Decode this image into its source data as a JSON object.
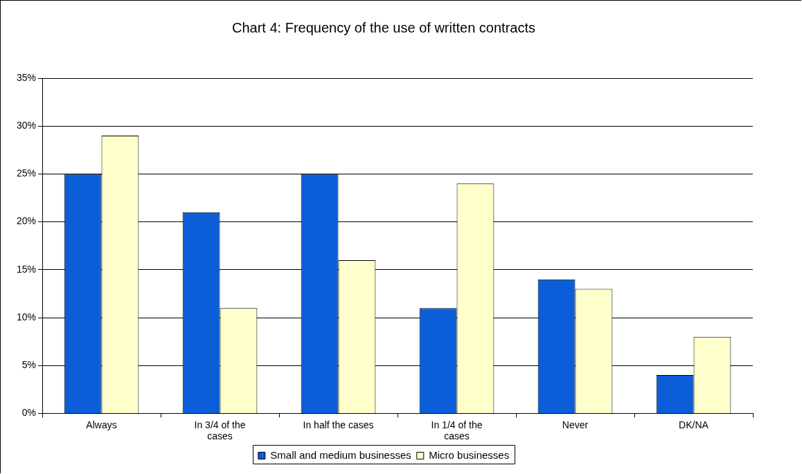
{
  "chart_data": {
    "type": "bar",
    "title": "Chart 4: Frequency of the use of written contracts",
    "categories": [
      "Always",
      "In 3/4 of the cases",
      "In half the cases",
      "In 1/4 of the cases",
      "Never",
      "DK/NA"
    ],
    "series": [
      {
        "name": "Small and medium businesses",
        "color": "#0b5ed7",
        "values": [
          25,
          21,
          25,
          11,
          14,
          4
        ]
      },
      {
        "name": "Micro businesses",
        "color": "#ffffcc",
        "values": [
          29,
          11,
          16,
          24,
          13,
          8
        ]
      }
    ],
    "ylim": [
      0,
      35
    ],
    "yticks": [
      {
        "value": 0,
        "label": "0%"
      },
      {
        "value": 5,
        "label": "5%"
      },
      {
        "value": 10,
        "label": "10%"
      },
      {
        "value": 15,
        "label": "15%"
      },
      {
        "value": 20,
        "label": "20%"
      },
      {
        "value": 25,
        "label": "25%"
      },
      {
        "value": 30,
        "label": "30%"
      },
      {
        "value": 35,
        "label": "35%"
      }
    ],
    "grid": "y",
    "legend": "bottom"
  }
}
